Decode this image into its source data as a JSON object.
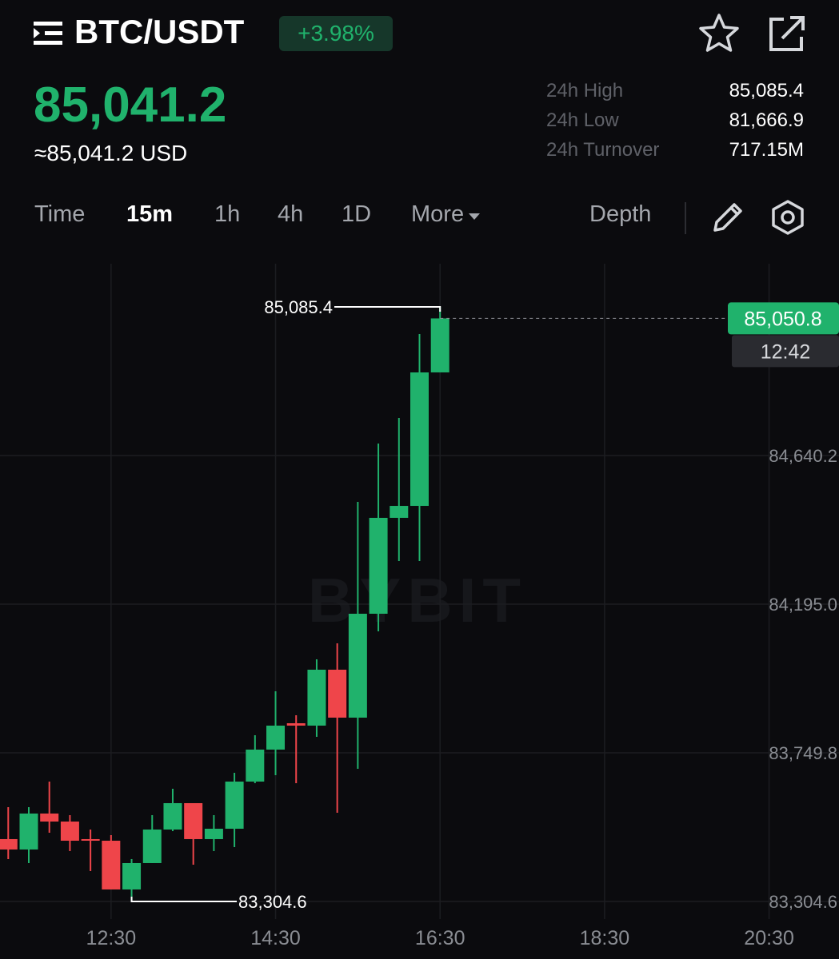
{
  "header": {
    "pair": "BTC/USDT",
    "change": "+3.98%",
    "price": "85,041.2",
    "usd_price": "≈85,041.2 USD",
    "stats": [
      {
        "label": "24h High",
        "value": "85,085.4"
      },
      {
        "label": "24h Low",
        "value": "81,666.9"
      },
      {
        "label": "24h Turnover",
        "value": "717.15M"
      }
    ]
  },
  "tabs": {
    "items": [
      "Time",
      "15m",
      "1h",
      "4h",
      "1D",
      "More"
    ],
    "active": "15m",
    "depth": "Depth"
  },
  "chart_data": {
    "type": "candlestick",
    "watermark": "BYBIT",
    "x": [
      "11:15",
      "11:30",
      "11:45",
      "12:00",
      "12:15",
      "12:30",
      "12:45",
      "13:00",
      "13:15",
      "13:30",
      "13:45",
      "14:00",
      "14:15",
      "14:30",
      "14:45",
      "15:00",
      "15:15",
      "15:30",
      "15:45",
      "16:00",
      "16:15",
      "16:30"
    ],
    "open": [
      83491.3,
      83460.2,
      83567.9,
      83543.9,
      83491.3,
      83486.5,
      83340.5,
      83419.5,
      83520.0,
      83599.0,
      83491.3,
      83522.4,
      83663.6,
      83759.4,
      83838.3,
      83831.2,
      83998.7,
      83855.1,
      84166.3,
      84453.5,
      84489.3,
      84889.1
    ],
    "high": [
      83587.0,
      83587.0,
      83663.6,
      83563.1,
      83520.0,
      83503.3,
      83431.5,
      83563.1,
      83642.1,
      83599.0,
      83563.1,
      83689.9,
      83802.4,
      83934.1,
      83862.3,
      84029.8,
      84077.7,
      84501.4,
      84676.1,
      84752.7,
      85004.0,
      85085.4
    ],
    "low": [
      83431.5,
      83419.5,
      83510.4,
      83455.4,
      83395.6,
      83340.5,
      83304.6,
      83419.5,
      83515.2,
      83414.7,
      83455.4,
      83467.4,
      83658.8,
      83682.8,
      83658.8,
      83797.7,
      83570.3,
      83701.9,
      84113.6,
      84324.2,
      84324.2,
      84889.1
    ],
    "close": [
      83460.2,
      83567.9,
      83543.9,
      83486.5,
      83486.5,
      83340.5,
      83419.5,
      83520.0,
      83599.0,
      83491.3,
      83522.4,
      83663.6,
      83759.4,
      83831.2,
      83831.2,
      83998.7,
      83855.1,
      84166.3,
      84453.5,
      84489.3,
      84889.1,
      85050.8
    ],
    "up_color": "#20b26c",
    "down_color": "#ef454a",
    "xlim": [
      "11:09",
      "21:21"
    ],
    "xticks": [
      "12:30",
      "14:30",
      "16:30",
      "18:30",
      "20:30"
    ],
    "ylim": [
      83251.9,
      85214.6
    ],
    "yticks": [
      {
        "value": 83304.6,
        "label": "83,304.6"
      },
      {
        "value": 83749.8,
        "label": "83,749.8"
      },
      {
        "value": 84195.0,
        "label": "84,195.0"
      },
      {
        "value": 84640.2,
        "label": "84,640.2"
      }
    ],
    "grid": true,
    "annotations": [
      {
        "x": "16:30",
        "value": 85085.4,
        "label": "85,085.4",
        "kind": "high"
      },
      {
        "x": "12:45",
        "value": 83304.6,
        "label": "83,304.6",
        "kind": "low"
      }
    ],
    "last_price": {
      "value": 85050.8,
      "label": "85,050.8",
      "countdown": "12:42"
    }
  }
}
